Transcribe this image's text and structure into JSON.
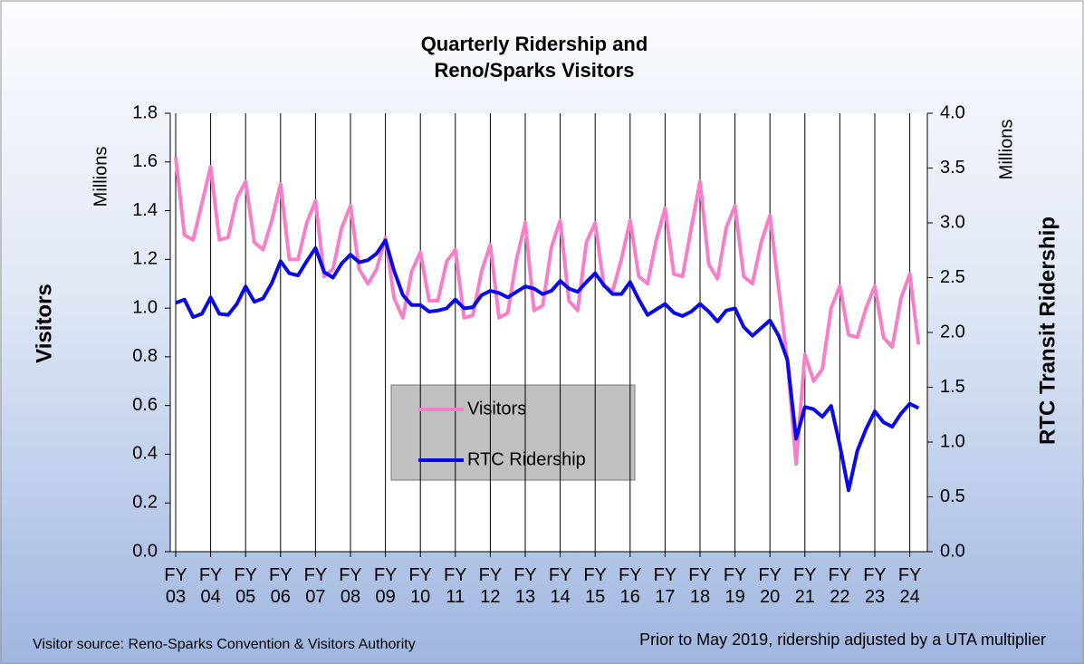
{
  "chart_data": {
    "type": "line",
    "title": "Quarterly Ridership and Reno/Sparks Visitors",
    "ylabel": "Visitors",
    "yunit": "Millions",
    "y2label": "RTC Transit Ridership",
    "y2unit": "Millions",
    "source_left": "Visitor source: Reno-Sparks Convention & Visitors Authority",
    "source_right": "Prior to May 2019, ridership adjusted by a UTA multiplier",
    "categories": [
      "FY 03",
      null,
      null,
      null,
      "FY 04",
      null,
      null,
      null,
      "FY 05",
      null,
      null,
      null,
      "FY 06",
      null,
      null,
      null,
      "FY 07",
      null,
      null,
      null,
      "FY 08",
      null,
      null,
      null,
      "FY 09",
      null,
      null,
      null,
      "FY 10",
      null,
      null,
      null,
      "FY 11",
      null,
      null,
      null,
      "FY 12",
      null,
      null,
      null,
      "FY 13",
      null,
      null,
      null,
      "FY 14",
      null,
      null,
      null,
      "FY 15",
      null,
      null,
      null,
      "FY 16",
      null,
      null,
      null,
      "FY 17",
      null,
      null,
      null,
      "FY 18",
      null,
      null,
      null,
      "FY 19",
      null,
      null,
      null,
      "FY 20",
      null,
      null,
      null,
      "FY 21",
      null,
      null,
      null,
      "FY 22",
      null,
      null,
      null,
      "FY 23",
      null,
      null,
      null,
      "FY 24",
      null
    ],
    "series": [
      {
        "name": "Visitors",
        "color": "#f77fc9",
        "values": [
          1.62,
          1.3,
          1.28,
          1.43,
          1.58,
          1.28,
          1.29,
          1.45,
          1.52,
          1.27,
          1.24,
          1.36,
          1.51,
          1.2,
          1.2,
          1.35,
          1.44,
          1.13,
          1.16,
          1.33,
          1.42,
          1.16,
          1.1,
          1.16,
          1.29,
          1.04,
          0.96,
          1.15,
          1.23,
          1.03,
          1.03,
          1.19,
          1.24,
          0.96,
          0.97,
          1.15,
          1.26,
          0.96,
          0.98,
          1.2,
          1.35,
          0.99,
          1.01,
          1.25,
          1.36,
          1.03,
          0.99,
          1.27,
          1.35,
          1.09,
          1.07,
          1.2,
          1.36,
          1.13,
          1.1,
          1.28,
          1.41,
          1.14,
          1.13,
          1.33,
          1.52,
          1.18,
          1.12,
          1.33,
          1.42,
          1.13,
          1.1,
          1.27,
          1.38,
          1.08,
          0.78,
          0.36,
          0.81,
          0.7,
          0.75,
          1.0,
          1.09,
          0.89,
          0.88,
          1.0,
          1.09,
          0.88,
          0.84,
          1.04,
          1.14,
          0.85
        ]
      },
      {
        "name": "RTC Ridership",
        "color": "#0a0ae6",
        "axis": "y2",
        "values": [
          2.27,
          2.3,
          2.14,
          2.17,
          2.32,
          2.17,
          2.16,
          2.26,
          2.42,
          2.28,
          2.31,
          2.45,
          2.65,
          2.54,
          2.52,
          2.65,
          2.77,
          2.55,
          2.5,
          2.63,
          2.71,
          2.64,
          2.66,
          2.72,
          2.84,
          2.56,
          2.34,
          2.25,
          2.25,
          2.19,
          2.2,
          2.22,
          2.3,
          2.22,
          2.23,
          2.34,
          2.38,
          2.36,
          2.32,
          2.37,
          2.42,
          2.4,
          2.35,
          2.38,
          2.47,
          2.4,
          2.37,
          2.46,
          2.54,
          2.43,
          2.35,
          2.35,
          2.46,
          2.3,
          2.16,
          2.21,
          2.26,
          2.18,
          2.15,
          2.19,
          2.26,
          2.19,
          2.1,
          2.2,
          2.22,
          2.05,
          1.97,
          2.04,
          2.11,
          1.97,
          1.75,
          1.03,
          1.32,
          1.3,
          1.23,
          1.33,
          0.97,
          0.56,
          0.92,
          1.12,
          1.28,
          1.18,
          1.14,
          1.26,
          1.35,
          1.31
        ]
      }
    ],
    "ylim": [
      0,
      1.8
    ],
    "yticks": [
      {
        "value": 0,
        "label": "0.0"
      },
      0.2,
      0.4,
      0.6,
      0.8,
      {
        "value": 1,
        "label": "1.0"
      },
      1.2,
      1.4,
      1.6,
      1.8
    ],
    "y2lim": [
      0,
      4
    ],
    "y2ticks": [
      {
        "value": 0,
        "label": "0.0"
      },
      0.5,
      {
        "value": 1,
        "label": "1.0"
      },
      1.5,
      {
        "value": 2,
        "label": "2.0"
      },
      2.5,
      {
        "value": 3,
        "label": "3.0"
      },
      3.5,
      {
        "value": 4,
        "label": "4.0"
      }
    ],
    "grid": "x",
    "legend": "center"
  }
}
